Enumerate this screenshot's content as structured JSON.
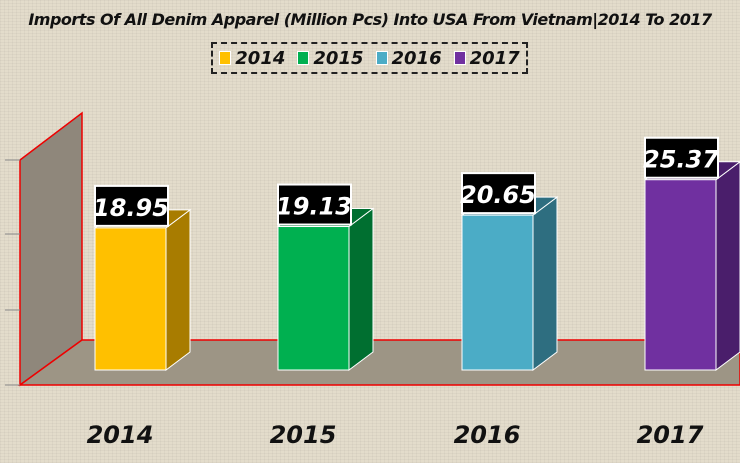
{
  "chart_data": {
    "type": "bar",
    "title": "Imports Of All Denim Apparel (Million Pcs) Into USA From Vietnam|2014 To 2017",
    "categories": [
      "2014",
      "2015",
      "2016",
      "2017"
    ],
    "values": [
      18.95,
      19.13,
      20.65,
      25.37
    ],
    "data_labels": [
      "18.95",
      "19.13",
      "20.65",
      "25.37"
    ],
    "colors": [
      "#ffc000",
      "#00b050",
      "#4bacc6",
      "#7030a0"
    ],
    "side_colors": [
      "#a87c00",
      "#006f30",
      "#2e6e80",
      "#4a1e6b"
    ],
    "legend": {
      "position": "top",
      "entries": [
        "2014",
        "2015",
        "2016",
        "2017"
      ]
    },
    "ylim": [
      0,
      30
    ],
    "grid": false,
    "style": "3d-column"
  }
}
